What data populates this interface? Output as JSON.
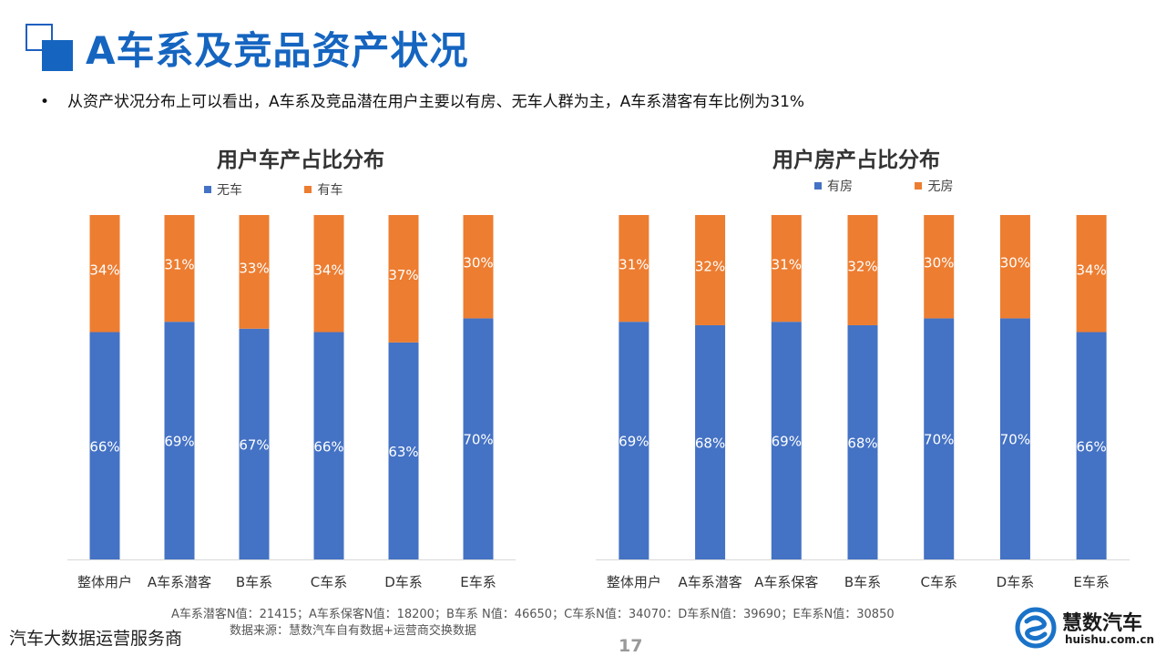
{
  "header": {
    "title": "A车系及竞品资产状况",
    "bullet": "从资产状况分布上可以看出，A车系及竞品潜在用户主要以有房、无车人群为主，A车系潜客有车比例为31%"
  },
  "colors": {
    "blue": "#4472c4",
    "orange": "#ed7d31",
    "title_blue": "#1565c0"
  },
  "chart_data": [
    {
      "type": "bar",
      "stacked": true,
      "title": "用户车产占比分布",
      "categories": [
        "整体用户",
        "A车系潜客",
        "B车系",
        "C车系",
        "D车系",
        "E车系"
      ],
      "series": [
        {
          "name": "无车",
          "values": [
            66,
            69,
            67,
            66,
            63,
            70
          ],
          "labels": [
            "66%",
            "69%",
            "67%",
            "66%",
            "63%",
            "70%"
          ],
          "color": "#4472c4"
        },
        {
          "name": "有车",
          "values": [
            34,
            31,
            33,
            34,
            37,
            30
          ],
          "labels": [
            "34%",
            "31%",
            "33%",
            "34%",
            "37%",
            "30%"
          ],
          "color": "#ed7d31"
        }
      ],
      "ylim": [
        0,
        100
      ],
      "legend": "top",
      "grid": false
    },
    {
      "type": "bar",
      "stacked": true,
      "title": "用户房产占比分布",
      "categories": [
        "整体用户",
        "A车系潜客",
        "A车系保客",
        "B车系",
        "C车系",
        "D车系",
        "E车系"
      ],
      "series": [
        {
          "name": "有房",
          "values": [
            69,
            68,
            69,
            68,
            70,
            70,
            66
          ],
          "labels": [
            "69%",
            "68%",
            "69%",
            "68%",
            "70%",
            "70%",
            "66%"
          ],
          "color": "#4472c4"
        },
        {
          "name": "无房",
          "values": [
            31,
            32,
            31,
            32,
            30,
            30,
            34
          ],
          "labels": [
            "31%",
            "32%",
            "31%",
            "32%",
            "30%",
            "30%",
            "34%"
          ],
          "color": "#ed7d31"
        }
      ],
      "ylim": [
        0,
        100
      ],
      "legend": "top",
      "grid": false
    }
  ],
  "footer": {
    "note": "A车系潜客N值：21415；A车系保客N值：18200；B车系 N值：46650；C车系N值：34070：D车系N值：39690；E车系N值：30850",
    "source": "数据来源：慧数汽车自有数据+运营商交换数据",
    "company": "汽车大数据运营服务商",
    "page": "17",
    "logo_name": "慧数汽车",
    "logo_url": "huishu.com.cn"
  }
}
